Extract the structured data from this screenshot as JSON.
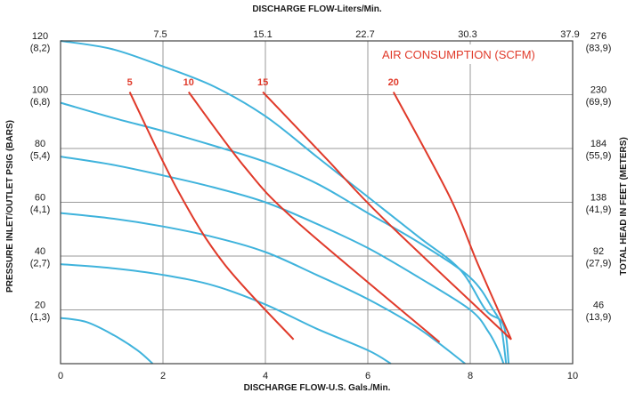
{
  "chart_data": {
    "type": "line",
    "title": "",
    "top_axis_label": "DISCHARGE FLOW-Liters/Min.",
    "top_ticks": [
      "7.5",
      "15.1",
      "22.7",
      "30.3",
      "37.9"
    ],
    "xlabel": "DISCHARGE FLOW-U.S. Gals./Min.",
    "x_ticks": [
      "0",
      "2",
      "4",
      "6",
      "8",
      "10"
    ],
    "xlim": [
      0,
      10
    ],
    "ylabel_left": "PRESSURE INLET/OUTLET PSIG (BARS)",
    "left_ticks": [
      {
        "psi": 120,
        "label1": "120",
        "label2": "(8,2)"
      },
      {
        "psi": 100,
        "label1": "100",
        "label2": "(6,8)"
      },
      {
        "psi": 80,
        "label1": "80",
        "label2": "(5,4)"
      },
      {
        "psi": 60,
        "label1": "60",
        "label2": "(4,1)"
      },
      {
        "psi": 40,
        "label1": "40",
        "label2": "(2,7)"
      },
      {
        "psi": 20,
        "label1": "20",
        "label2": "(1,3)"
      }
    ],
    "ylim": [
      0,
      120
    ],
    "ylabel_right": "TOTAL HEAD IN FEET (METERS)",
    "right_ticks": [
      {
        "psi": 120,
        "label1": "276",
        "label2": "(83,9)"
      },
      {
        "psi": 100,
        "label1": "230",
        "label2": "(69,9)"
      },
      {
        "psi": 80,
        "label1": "184",
        "label2": "(55,9)"
      },
      {
        "psi": 60,
        "label1": "138",
        "label2": "(41,9)"
      },
      {
        "psi": 40,
        "label1": "92",
        "label2": "(27,9)"
      },
      {
        "psi": 20,
        "label1": "46",
        "label2": "(13,9)"
      }
    ],
    "annotation": "AIR CONSUMPTION (SCFM)",
    "grid": true,
    "pressure_curves": [
      {
        "points": [
          [
            0,
            120
          ],
          [
            1,
            117
          ],
          [
            2,
            110.5
          ],
          [
            3,
            103
          ],
          [
            4,
            92
          ],
          [
            5,
            77
          ],
          [
            6,
            62
          ],
          [
            7,
            47
          ],
          [
            7.8,
            35
          ],
          [
            8.3,
            20
          ],
          [
            8.6,
            16
          ],
          [
            8.7,
            10
          ],
          [
            8.75,
            0
          ]
        ]
      },
      {
        "points": [
          [
            0,
            97
          ],
          [
            1,
            91.5
          ],
          [
            2,
            86.5
          ],
          [
            3,
            81
          ],
          [
            4,
            75
          ],
          [
            5,
            67
          ],
          [
            6,
            56
          ],
          [
            7,
            45
          ],
          [
            8,
            32
          ],
          [
            8.45,
            20
          ],
          [
            8.6,
            14
          ],
          [
            8.7,
            0
          ]
        ]
      },
      {
        "points": [
          [
            0,
            77
          ],
          [
            1,
            74
          ],
          [
            2,
            70
          ],
          [
            3,
            65.5
          ],
          [
            4,
            60
          ],
          [
            5,
            52
          ],
          [
            6,
            43
          ],
          [
            7,
            32
          ],
          [
            8,
            20
          ],
          [
            8.35,
            12
          ],
          [
            8.55,
            5
          ],
          [
            8.65,
            0
          ]
        ]
      },
      {
        "points": [
          [
            0,
            56
          ],
          [
            1,
            54
          ],
          [
            2,
            51
          ],
          [
            3,
            47
          ],
          [
            4,
            41.5
          ],
          [
            5,
            33
          ],
          [
            6,
            24
          ],
          [
            7,
            13
          ],
          [
            7.9,
            0
          ]
        ]
      },
      {
        "points": [
          [
            0,
            37
          ],
          [
            1,
            35.5
          ],
          [
            2,
            33
          ],
          [
            3,
            29
          ],
          [
            4,
            22
          ],
          [
            5,
            13
          ],
          [
            6,
            5
          ],
          [
            6.45,
            0
          ]
        ]
      },
      {
        "points": [
          [
            0,
            17
          ],
          [
            0.5,
            15.5
          ],
          [
            1,
            11
          ],
          [
            1.5,
            5
          ],
          [
            1.8,
            0
          ]
        ]
      }
    ],
    "air_curves": [
      {
        "label": "5",
        "points": [
          [
            1.35,
            101
          ],
          [
            2.3,
            64
          ],
          [
            3.2,
            37
          ],
          [
            4.55,
            9
          ]
        ],
        "label_at": [
          1.35,
          103.5
        ]
      },
      {
        "label": "10",
        "points": [
          [
            2.5,
            101
          ],
          [
            3.6,
            73
          ],
          [
            4.6,
            53
          ],
          [
            7.4,
            8
          ]
        ],
        "label_at": [
          2.5,
          103.5
        ]
      },
      {
        "label": "15",
        "points": [
          [
            3.95,
            101
          ],
          [
            5.2,
            76
          ],
          [
            6.3,
            54
          ],
          [
            8.8,
            9
          ]
        ],
        "label_at": [
          3.95,
          103.5
        ]
      },
      {
        "label": "20",
        "points": [
          [
            6.5,
            101
          ],
          [
            7.6,
            62
          ],
          [
            8.15,
            37
          ],
          [
            8.8,
            9
          ]
        ],
        "label_at": [
          6.5,
          103.5
        ]
      }
    ],
    "colors": {
      "pressure": "#3fb3dc",
      "air": "#e03a2a",
      "grid": "#9a9a9a",
      "text": "#1a1a1a"
    }
  }
}
